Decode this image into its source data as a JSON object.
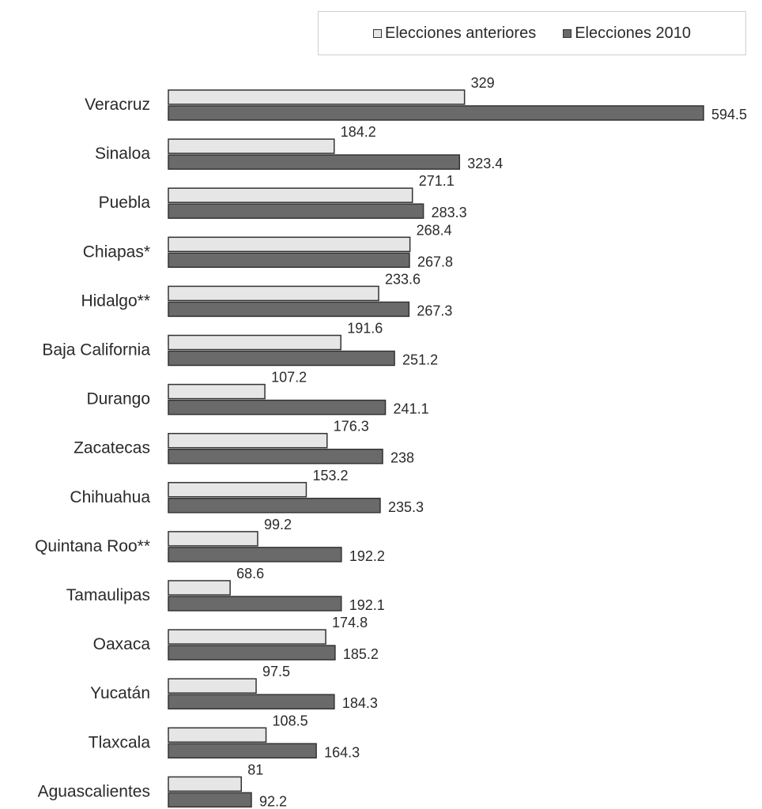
{
  "chart_data": {
    "type": "bar",
    "orientation": "horizontal",
    "categories": [
      "Veracruz",
      "Sinaloa",
      "Puebla",
      "Chiapas*",
      "Hidalgo**",
      "Baja California",
      "Durango",
      "Zacatecas",
      "Chihuahua",
      "Quintana Roo**",
      "Tamaulipas",
      "Oaxaca",
      "Yucatán",
      "Tlaxcala",
      "Aguascalientes"
    ],
    "series": [
      {
        "name": "Elecciones anteriores",
        "color": "#e6e6e6",
        "values": [
          329,
          184.2,
          271.1,
          268.4,
          233.6,
          191.6,
          107.2,
          176.3,
          153.2,
          99.2,
          68.6,
          174.8,
          97.5,
          108.5,
          81
        ],
        "labels": [
          "329",
          "184.2",
          "271.1",
          "268.4",
          "233.6",
          "191.6",
          "107.2",
          "176.3",
          "153.2",
          "99.2",
          "68.6",
          "174.8",
          "97.5",
          "108.5",
          "81"
        ]
      },
      {
        "name": "Elecciones 2010",
        "color": "#6a6a6a",
        "values": [
          594.5,
          323.4,
          283.3,
          267.8,
          267.3,
          251.2,
          241.1,
          238,
          235.3,
          192.2,
          192.1,
          185.2,
          184.3,
          164.3,
          92.2
        ],
        "labels": [
          "594.5",
          "323.4",
          "283.3",
          "267.8",
          "267.3",
          "251.2",
          "241.1",
          "238",
          "235.3",
          "192.2",
          "192.1",
          "185.2",
          "184.3",
          "164.3",
          "92.2"
        ]
      }
    ],
    "title": "",
    "xlabel": "",
    "ylabel": "",
    "xlim": [
      0,
      594.5
    ],
    "grid": false,
    "legend_position": "top-right"
  }
}
